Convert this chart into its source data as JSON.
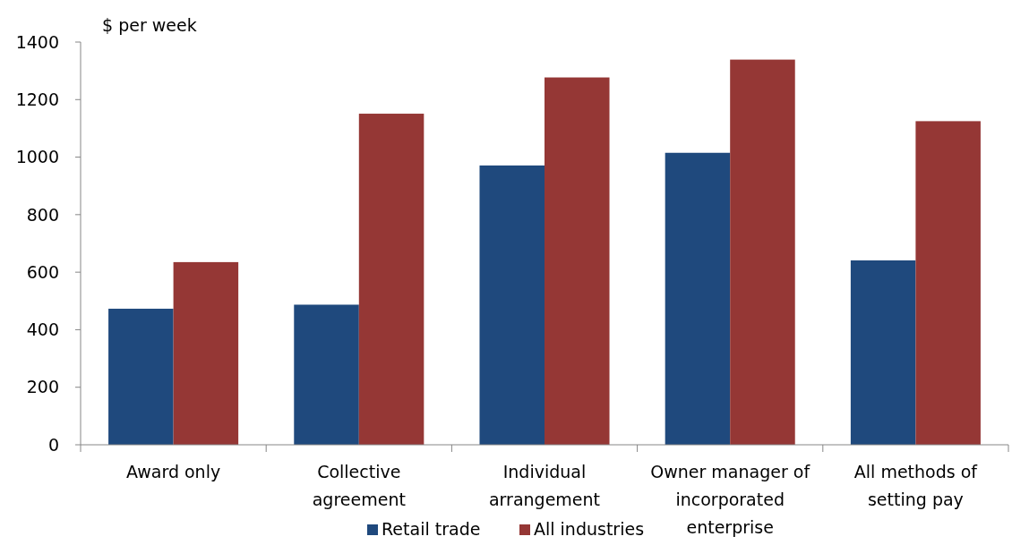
{
  "chart_data": {
    "type": "bar",
    "ylabel": "$ per week",
    "categories": [
      "Award only",
      "Collective agreement",
      "Individual arrangement",
      "Owner manager of incorporated enterprise",
      "All methods of setting pay"
    ],
    "series": [
      {
        "name": "Retail trade",
        "color": "#1f497d",
        "values": [
          473,
          487,
          971,
          1015,
          641
        ]
      },
      {
        "name": "All industries",
        "color": "#953735",
        "values": [
          635,
          1151,
          1277,
          1339,
          1125
        ]
      }
    ],
    "ylim": [
      0,
      1400
    ],
    "yticks": [
      0,
      200,
      400,
      600,
      800,
      1000,
      1200,
      1400
    ],
    "grid": false,
    "legend": "bottom"
  }
}
